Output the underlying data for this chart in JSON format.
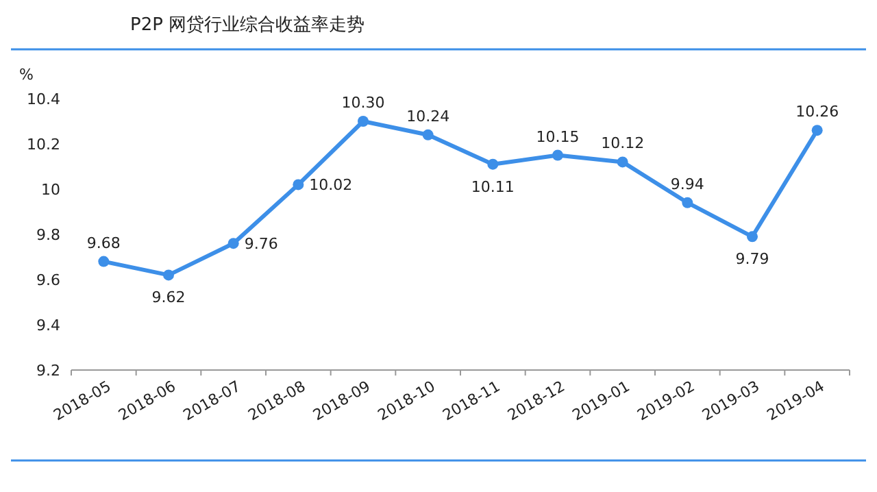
{
  "chart_data": {
    "type": "line",
    "title": "P2P 网贷行业综合收益率走势",
    "ylabel": "%",
    "categories": [
      "2018-05",
      "2018-06",
      "2018-07",
      "2018-08",
      "2018-09",
      "2018-10",
      "2018-11",
      "2018-12",
      "2019-01",
      "2019-02",
      "2019-03",
      "2019-04"
    ],
    "values": [
      9.68,
      9.62,
      9.76,
      10.02,
      10.3,
      10.24,
      10.11,
      10.15,
      10.12,
      9.94,
      9.79,
      10.26
    ],
    "value_labels": [
      "9.68",
      "9.62",
      "9.76",
      "10.02",
      "10.30",
      "10.24",
      "10.11",
      "10.15",
      "10.12",
      "9.94",
      "9.79",
      "10.26"
    ],
    "color": "#3d8fe8",
    "marker": "circle",
    "line_style": "solid",
    "ylim": [
      9.2,
      10.4
    ],
    "yticks": [
      9.2,
      9.4,
      9.6,
      9.8,
      10,
      10.2,
      10.4
    ]
  }
}
